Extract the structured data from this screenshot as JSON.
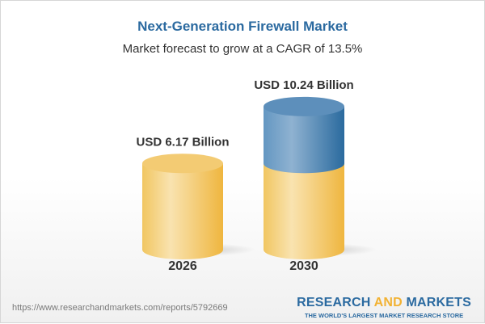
{
  "title": "Next-Generation Firewall Market",
  "subtitle": "Market forecast to grow at a CAGR of 13.5%",
  "chart_data": {
    "type": "bar",
    "style": "3d-cylinder",
    "categories": [
      "2026",
      "2030"
    ],
    "values": [
      6.17,
      10.24
    ],
    "data_labels": [
      "USD 6.17 Billion",
      "USD 10.24 Billion"
    ],
    "unit": "USD Billion",
    "colors": {
      "base": "#f2c45a",
      "growth": "#3f7bb0"
    }
  },
  "footer": {
    "url": "https://www.researchandmarkets.com/reports/5792669",
    "logo": {
      "part1": "RESEARCH ",
      "part2": "AND",
      "part3": " MARKETS",
      "tagline": "THE WORLD'S LARGEST MARKET RESEARCH STORE"
    }
  }
}
